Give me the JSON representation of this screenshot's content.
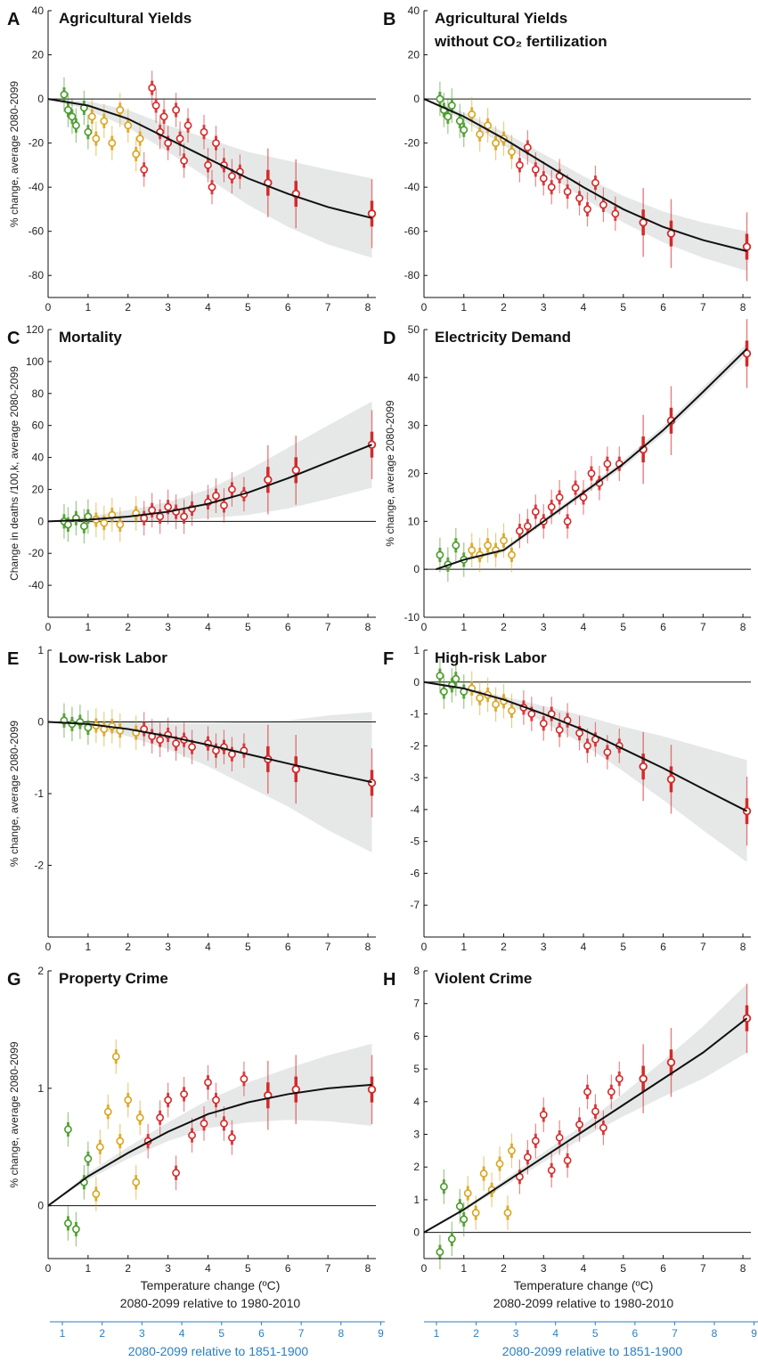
{
  "axis_footer": {
    "xlabel_line1": "Temperature change (ºC)",
    "xlabel_line2": "2080-2099 relative to 1980-2010",
    "preindustrial_label": "2080-2099 relative to 1851-1900",
    "preindustrial_ticks": [
      "1",
      "2",
      "3",
      "4",
      "5",
      "6",
      "7",
      "8",
      "9"
    ]
  },
  "colors": {
    "low_warming": "#4a9a2c",
    "mid_warming": "#d9a520",
    "high_warming": "#d42a2a",
    "fit_line": "#111111",
    "ci_band": "#e6e8e8",
    "secondary_axis": "#2a7fc0"
  },
  "chart_data": [
    {
      "panel": "A",
      "title": "Agricultural Yields",
      "type": "scatter",
      "ylabel": "% change, average 2080-2099",
      "ylim": [
        -90,
        40
      ],
      "yticks": [
        40,
        20,
        0,
        -20,
        -40,
        -60,
        -80
      ],
      "xlim": [
        0,
        8.2
      ],
      "xticks": [
        0,
        1,
        2,
        3,
        4,
        5,
        6,
        7,
        8
      ],
      "fit": {
        "x": [
          0,
          1,
          2,
          3,
          4,
          5,
          6,
          7,
          8.1
        ],
        "y": [
          0,
          -3,
          -9,
          -18,
          -27,
          -36,
          -43,
          -49,
          -54
        ],
        "ci_half": [
          0,
          2,
          4,
          6,
          9,
          12,
          15,
          17,
          18
        ]
      },
      "points": [
        [
          0.4,
          2
        ],
        [
          0.5,
          -5
        ],
        [
          0.6,
          -8
        ],
        [
          0.7,
          -12
        ],
        [
          0.9,
          -4
        ],
        [
          1.0,
          -15
        ],
        [
          1.1,
          -8
        ],
        [
          1.2,
          -18
        ],
        [
          1.4,
          -10
        ],
        [
          1.6,
          -20
        ],
        [
          1.8,
          -5
        ],
        [
          2.0,
          -12
        ],
        [
          2.2,
          -25
        ],
        [
          2.3,
          -18
        ],
        [
          2.4,
          -32
        ],
        [
          2.6,
          5
        ],
        [
          2.7,
          -3
        ],
        [
          2.8,
          -15
        ],
        [
          2.9,
          -8
        ],
        [
          3.0,
          -20
        ],
        [
          3.2,
          -5
        ],
        [
          3.3,
          -18
        ],
        [
          3.4,
          -28
        ],
        [
          3.5,
          -12
        ],
        [
          3.9,
          -15
        ],
        [
          4.0,
          -30
        ],
        [
          4.1,
          -40
        ],
        [
          4.2,
          -20
        ],
        [
          4.4,
          -30
        ],
        [
          4.6,
          -35
        ],
        [
          4.8,
          -33
        ]
      ],
      "highlight": [
        [
          5.5,
          -38
        ],
        [
          6.2,
          -43
        ],
        [
          8.1,
          -52
        ]
      ]
    },
    {
      "panel": "B",
      "title": "Agricultural Yields",
      "title_line2": "without CO₂ fertilization",
      "type": "scatter",
      "ylabel": "",
      "ylim": [
        -90,
        40
      ],
      "yticks": [
        40,
        20,
        0,
        -20,
        -40,
        -60,
        -80
      ],
      "xlim": [
        0,
        8.2
      ],
      "xticks": [
        0,
        1,
        2,
        3,
        4,
        5,
        6,
        7,
        8
      ],
      "fit": {
        "x": [
          0,
          1,
          2,
          3,
          4,
          5,
          6,
          7,
          8.1
        ],
        "y": [
          0,
          -8,
          -18,
          -29,
          -40,
          -50,
          -58,
          -64,
          -69
        ],
        "ci_half": [
          0,
          2,
          3,
          4,
          5,
          6,
          7,
          8,
          9
        ]
      },
      "points": [
        [
          0.4,
          0
        ],
        [
          0.5,
          -5
        ],
        [
          0.6,
          -8
        ],
        [
          0.7,
          -3
        ],
        [
          0.9,
          -10
        ],
        [
          1.0,
          -14
        ],
        [
          1.2,
          -7
        ],
        [
          1.4,
          -16
        ],
        [
          1.6,
          -12
        ],
        [
          1.8,
          -20
        ],
        [
          2.0,
          -18
        ],
        [
          2.2,
          -24
        ],
        [
          2.4,
          -30
        ],
        [
          2.6,
          -22
        ],
        [
          2.8,
          -32
        ],
        [
          3.0,
          -36
        ],
        [
          3.2,
          -40
        ],
        [
          3.4,
          -35
        ],
        [
          3.6,
          -42
        ],
        [
          3.9,
          -45
        ],
        [
          4.1,
          -50
        ],
        [
          4.3,
          -38
        ],
        [
          4.5,
          -48
        ],
        [
          4.8,
          -52
        ]
      ],
      "highlight": [
        [
          5.5,
          -56
        ],
        [
          6.2,
          -61
        ],
        [
          8.1,
          -67
        ]
      ]
    },
    {
      "panel": "C",
      "title": "Mortality",
      "type": "scatter",
      "ylabel": "Change in deaths /100,k, average 2080-2099",
      "ylim": [
        -60,
        120
      ],
      "yticks": [
        120,
        100,
        80,
        60,
        40,
        20,
        0,
        -20,
        -40
      ],
      "xlim": [
        0,
        8.2
      ],
      "xticks": [
        0,
        1,
        2,
        3,
        4,
        5,
        6,
        7,
        8
      ],
      "fit": {
        "x": [
          0,
          1,
          2,
          3,
          4,
          5,
          6,
          7,
          8.1
        ],
        "y": [
          0,
          1,
          3,
          6,
          11,
          18,
          27,
          37,
          48
        ],
        "ci_half": [
          0,
          2,
          4,
          6,
          9,
          14,
          19,
          23,
          27
        ]
      },
      "points": [
        [
          0.4,
          0
        ],
        [
          0.5,
          -2
        ],
        [
          0.7,
          2
        ],
        [
          0.9,
          -3
        ],
        [
          1.0,
          3
        ],
        [
          1.2,
          1
        ],
        [
          1.4,
          -1
        ],
        [
          1.6,
          4
        ],
        [
          1.8,
          -2
        ],
        [
          2.2,
          5
        ],
        [
          2.4,
          2
        ],
        [
          2.6,
          7
        ],
        [
          2.8,
          3
        ],
        [
          3.0,
          9
        ],
        [
          3.2,
          6
        ],
        [
          3.4,
          3
        ],
        [
          3.6,
          8
        ],
        [
          4.0,
          12
        ],
        [
          4.2,
          16
        ],
        [
          4.4,
          10
        ],
        [
          4.6,
          20
        ],
        [
          4.9,
          17
        ]
      ],
      "highlight": [
        [
          5.5,
          26
        ],
        [
          6.2,
          32
        ],
        [
          8.1,
          48
        ]
      ]
    },
    {
      "panel": "D",
      "title": "Electricity Demand",
      "type": "scatter",
      "ylabel": "% change, average 2080-2099",
      "ylim": [
        -10,
        50
      ],
      "yticks": [
        50,
        40,
        30,
        20,
        10,
        0,
        -10
      ],
      "xlim": [
        0,
        8.2
      ],
      "xticks": [
        0,
        1,
        2,
        3,
        4,
        5,
        6,
        7,
        8
      ],
      "fit": {
        "x": [
          0.3,
          1,
          2,
          3,
          4,
          5,
          6,
          7,
          8.1
        ],
        "y": [
          0,
          2,
          4,
          10,
          16,
          22,
          29,
          37,
          46
        ],
        "ci_half": [
          0,
          0.3,
          0.5,
          0.6,
          0.7,
          0.8,
          0.9,
          1.0,
          1.1
        ]
      },
      "points": [
        [
          0.4,
          3
        ],
        [
          0.6,
          1
        ],
        [
          0.8,
          5
        ],
        [
          1.0,
          2
        ],
        [
          1.2,
          4
        ],
        [
          1.4,
          3
        ],
        [
          1.6,
          5
        ],
        [
          1.8,
          4
        ],
        [
          2.0,
          6
        ],
        [
          2.2,
          3
        ],
        [
          2.4,
          8
        ],
        [
          2.6,
          9
        ],
        [
          2.8,
          12
        ],
        [
          3.0,
          10
        ],
        [
          3.2,
          13
        ],
        [
          3.4,
          15
        ],
        [
          3.6,
          10
        ],
        [
          3.8,
          17
        ],
        [
          4.0,
          15
        ],
        [
          4.2,
          20
        ],
        [
          4.4,
          18
        ],
        [
          4.6,
          22
        ],
        [
          4.9,
          22
        ]
      ],
      "highlight": [
        [
          5.5,
          25
        ],
        [
          6.2,
          31
        ],
        [
          8.1,
          45
        ]
      ]
    },
    {
      "panel": "E",
      "title": "Low-risk Labor",
      "type": "scatter",
      "ylabel": "% change, average 2080-2099",
      "ylim": [
        -3,
        1
      ],
      "yticks": [
        1,
        0,
        -1,
        -2
      ],
      "xlim": [
        0,
        8.2
      ],
      "xticks": [
        0,
        1,
        2,
        3,
        4,
        5,
        6,
        7,
        8
      ],
      "fit": {
        "x": [
          0,
          1,
          2,
          3,
          4,
          5,
          6,
          7,
          8.1
        ],
        "y": [
          0,
          -0.03,
          -0.1,
          -0.2,
          -0.32,
          -0.45,
          -0.58,
          -0.71,
          -0.84
        ],
        "ci_half": [
          0,
          0.05,
          0.1,
          0.18,
          0.3,
          0.45,
          0.6,
          0.8,
          0.98
        ]
      },
      "points": [
        [
          0.4,
          0.02
        ],
        [
          0.6,
          -0.03
        ],
        [
          0.8,
          0.0
        ],
        [
          1.0,
          -0.08
        ],
        [
          1.2,
          -0.05
        ],
        [
          1.4,
          -0.1
        ],
        [
          1.6,
          -0.06
        ],
        [
          1.8,
          -0.12
        ],
        [
          2.2,
          -0.15
        ],
        [
          2.4,
          -0.1
        ],
        [
          2.6,
          -0.2
        ],
        [
          2.8,
          -0.25
        ],
        [
          3.0,
          -0.18
        ],
        [
          3.2,
          -0.3
        ],
        [
          3.4,
          -0.25
        ],
        [
          3.6,
          -0.35
        ],
        [
          4.0,
          -0.3
        ],
        [
          4.2,
          -0.4
        ],
        [
          4.4,
          -0.35
        ],
        [
          4.6,
          -0.45
        ],
        [
          4.9,
          -0.4
        ]
      ],
      "highlight": [
        [
          5.5,
          -0.52
        ],
        [
          6.2,
          -0.66
        ],
        [
          8.1,
          -0.85
        ]
      ]
    },
    {
      "panel": "F",
      "title": "High-risk Labor",
      "type": "scatter",
      "ylabel": "",
      "ylim": [
        -8,
        1
      ],
      "yticks": [
        1,
        0,
        -1,
        -2,
        -3,
        -4,
        -5,
        -6,
        -7
      ],
      "xlim": [
        0,
        8.2
      ],
      "xticks": [
        0,
        1,
        2,
        3,
        4,
        5,
        6,
        7,
        8
      ],
      "fit": {
        "x": [
          0,
          1,
          2,
          3,
          4,
          5,
          6,
          7,
          8.1
        ],
        "y": [
          0,
          -0.2,
          -0.55,
          -1.0,
          -1.5,
          -2.1,
          -2.7,
          -3.35,
          -4.05
        ],
        "ci_half": [
          0,
          0.05,
          0.1,
          0.25,
          0.45,
          0.7,
          1.0,
          1.3,
          1.6
        ]
      },
      "points": [
        [
          0.4,
          0.2
        ],
        [
          0.5,
          -0.3
        ],
        [
          0.7,
          -0.1
        ],
        [
          0.8,
          0.1
        ],
        [
          1.0,
          -0.3
        ],
        [
          1.2,
          -0.2
        ],
        [
          1.4,
          -0.5
        ],
        [
          1.6,
          -0.4
        ],
        [
          1.8,
          -0.7
        ],
        [
          2.0,
          -0.6
        ],
        [
          2.2,
          -0.9
        ],
        [
          2.5,
          -0.8
        ],
        [
          2.7,
          -1.0
        ],
        [
          3.0,
          -1.3
        ],
        [
          3.2,
          -1.0
        ],
        [
          3.4,
          -1.5
        ],
        [
          3.6,
          -1.2
        ],
        [
          3.9,
          -1.6
        ],
        [
          4.1,
          -2.0
        ],
        [
          4.3,
          -1.8
        ],
        [
          4.6,
          -2.2
        ],
        [
          4.9,
          -2.0
        ]
      ],
      "highlight": [
        [
          5.5,
          -2.65
        ],
        [
          6.2,
          -3.05
        ],
        [
          8.1,
          -4.05
        ]
      ]
    },
    {
      "panel": "G",
      "title": "Property Crime",
      "type": "scatter",
      "ylabel": "% change, average 2080-2099",
      "ylim": [
        -0.45,
        2
      ],
      "yticks": [
        2,
        1,
        0
      ],
      "xlim": [
        0,
        8.2
      ],
      "xticks": [
        0,
        1,
        2,
        3,
        4,
        5,
        6,
        7,
        8
      ],
      "fit": {
        "x": [
          0,
          1,
          2,
          3,
          4,
          5,
          6,
          7,
          8.1
        ],
        "y": [
          0,
          0.25,
          0.45,
          0.63,
          0.78,
          0.88,
          0.95,
          1.0,
          1.03
        ],
        "ci_half": [
          0,
          0.03,
          0.05,
          0.08,
          0.12,
          0.17,
          0.22,
          0.28,
          0.35
        ]
      },
      "points": [
        [
          0.5,
          0.65
        ],
        [
          0.5,
          -0.15
        ],
        [
          0.7,
          -0.2
        ],
        [
          0.9,
          0.2
        ],
        [
          1.0,
          0.4
        ],
        [
          1.2,
          0.1
        ],
        [
          1.3,
          0.5
        ],
        [
          1.5,
          0.8
        ],
        [
          1.7,
          1.27
        ],
        [
          1.8,
          0.55
        ],
        [
          2.0,
          0.9
        ],
        [
          2.2,
          0.2
        ],
        [
          2.3,
          0.75
        ],
        [
          2.5,
          0.55
        ],
        [
          2.8,
          0.75
        ],
        [
          3.0,
          0.9
        ],
        [
          3.2,
          0.28
        ],
        [
          3.4,
          0.95
        ],
        [
          3.6,
          0.6
        ],
        [
          3.9,
          0.7
        ],
        [
          4.0,
          1.05
        ],
        [
          4.2,
          0.9
        ],
        [
          4.4,
          0.7
        ],
        [
          4.6,
          0.58
        ],
        [
          4.9,
          1.08
        ]
      ],
      "highlight": [
        [
          5.5,
          0.94
        ],
        [
          6.2,
          0.99
        ],
        [
          8.1,
          0.99
        ]
      ]
    },
    {
      "panel": "H",
      "title": "Violent Crime",
      "type": "scatter",
      "ylabel": "",
      "ylim": [
        -0.8,
        8
      ],
      "yticks": [
        8,
        7,
        6,
        5,
        4,
        3,
        2,
        1,
        0
      ],
      "xlim": [
        0,
        8.2
      ],
      "xticks": [
        0,
        1,
        2,
        3,
        4,
        5,
        6,
        7,
        8
      ],
      "fit": {
        "x": [
          0,
          1,
          2,
          3,
          4,
          5,
          6,
          7,
          8.1
        ],
        "y": [
          0,
          0.7,
          1.5,
          2.3,
          3.1,
          3.9,
          4.7,
          5.5,
          6.55
        ],
        "ci_half": [
          0,
          0.05,
          0.1,
          0.15,
          0.2,
          0.35,
          0.55,
          0.8,
          1.05
        ]
      },
      "points": [
        [
          0.4,
          -0.6
        ],
        [
          0.5,
          1.4
        ],
        [
          0.7,
          -0.2
        ],
        [
          0.9,
          0.8
        ],
        [
          1.0,
          0.4
        ],
        [
          1.1,
          1.2
        ],
        [
          1.3,
          0.6
        ],
        [
          1.5,
          1.8
        ],
        [
          1.7,
          1.3
        ],
        [
          1.9,
          2.1
        ],
        [
          2.1,
          0.6
        ],
        [
          2.2,
          2.5
        ],
        [
          2.4,
          1.7
        ],
        [
          2.6,
          2.3
        ],
        [
          2.8,
          2.8
        ],
        [
          3.0,
          3.6
        ],
        [
          3.2,
          1.9
        ],
        [
          3.4,
          2.9
        ],
        [
          3.6,
          2.2
        ],
        [
          3.9,
          3.3
        ],
        [
          4.1,
          4.3
        ],
        [
          4.3,
          3.7
        ],
        [
          4.5,
          3.2
        ],
        [
          4.7,
          4.3
        ],
        [
          4.9,
          4.7
        ]
      ],
      "highlight": [
        [
          5.5,
          4.7
        ],
        [
          6.2,
          5.2
        ],
        [
          8.1,
          6.55
        ]
      ]
    }
  ]
}
